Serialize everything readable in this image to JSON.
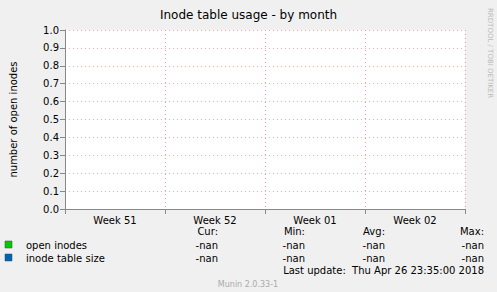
{
  "chart_data": {
    "type": "line",
    "title": "Inode table usage - by month",
    "y_label": "number of open inodes",
    "categories": [
      "Week 51",
      "Week 52",
      "Week 01",
      "Week 02"
    ],
    "series": [
      {
        "name": "open inodes",
        "color": "#00cc00",
        "values": [
          null,
          null,
          null,
          null
        ],
        "stats": [
          "-nan",
          "-nan",
          "-nan",
          "-nan"
        ]
      },
      {
        "name": "inode table size",
        "color": "#0066b3",
        "values": [
          null,
          null,
          null,
          null
        ],
        "stats": [
          "-nan",
          "-nan",
          "-nan",
          "-nan"
        ]
      }
    ],
    "stats_headers": [
      "Cur:",
      "Min:",
      "Avg:",
      "Max:"
    ],
    "ylim": [
      0,
      1
    ],
    "yticks": [
      {
        "value": 0,
        "label": "0.0"
      },
      0.1,
      0.2,
      0.3,
      0.4,
      0.5,
      0.6,
      0.7,
      0.8,
      0.9,
      {
        "value": 1,
        "label": "1.0"
      }
    ],
    "grid": true,
    "last_update": "Last update:  Thu Apr 26 23:35:00 2018",
    "footer": "Munin 2.0.33-1",
    "watermark": "RRDTOOL / TOBI OETIKER"
  }
}
